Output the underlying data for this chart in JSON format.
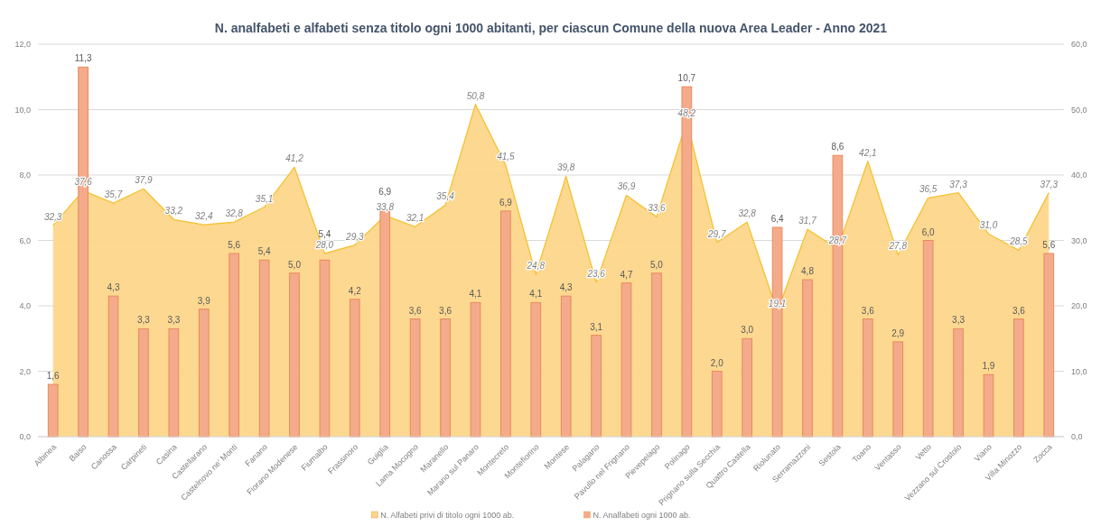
{
  "chart_data": {
    "type": "bar",
    "title": "N. analfabeti e alfabeti senza titolo ogni 1000 abitanti, per ciascun Comune della nuova Area Leader - Anno 2021",
    "categories": [
      "Albinea",
      "Baiso",
      "Canossa",
      "Carpineti",
      "Casina",
      "Castellarano",
      "Castelnovo ne' Monti",
      "Fanano",
      "Fiorano Modenese",
      "Fiumalbo",
      "Frassinoro",
      "Guiglia",
      "Lama Mocogno",
      "Maranello",
      "Marano sul Panaro",
      "Montecreto",
      "Montefiorino",
      "Montese",
      "Palagano",
      "Pavullo nel Frignano",
      "Pievepelago",
      "Polinago",
      "Prignano sulla Secchia",
      "Quattro Castella",
      "Riolunato",
      "Serramazzoni",
      "Sestola",
      "Toano",
      "Ventasso",
      "Vetto",
      "Vezzano sul Crostolo",
      "Viano",
      "Villa Minozzo",
      "Zocca"
    ],
    "series": [
      {
        "name": "N. Alfabeti privi di titolo ogni 1000 ab.",
        "type": "area",
        "axis": "y2",
        "color": "#fdd68b",
        "values": [
          32.3,
          37.6,
          35.7,
          37.9,
          33.2,
          32.4,
          32.8,
          35.1,
          41.2,
          28.0,
          29.3,
          33.8,
          32.1,
          35.4,
          50.8,
          41.5,
          24.8,
          39.8,
          23.6,
          36.9,
          33.6,
          48.2,
          29.7,
          32.8,
          19.1,
          31.7,
          28.7,
          42.1,
          27.8,
          36.5,
          37.3,
          31.0,
          28.5,
          37.3
        ],
        "value_labels": [
          "32,3",
          "37,6",
          "35,7",
          "37,9",
          "33,2",
          "32,4",
          "32,8",
          "35,1",
          "41,2",
          "28,0",
          "29,3",
          "33,8",
          "32,1",
          "35,4",
          "50,8",
          "41,5",
          "24,8",
          "39,8",
          "23,6",
          "36,9",
          "33,6",
          "48,2",
          "29,7",
          "32,8",
          "19,1",
          "31,7",
          "28,7",
          "42,1",
          "27,8",
          "36,5",
          "37,3",
          "31,0",
          "28,5",
          "37,3"
        ]
      },
      {
        "name": "N. Analfabeti ogni 1000 ab.",
        "color": "#f4ab8c",
        "values": [
          1.6,
          11.3,
          4.3,
          3.3,
          3.3,
          3.9,
          5.6,
          5.4,
          5.0,
          5.4,
          4.2,
          6.9,
          3.6,
          3.6,
          4.1,
          6.9,
          4.1,
          4.3,
          3.1,
          4.7,
          5.0,
          10.7,
          2.0,
          3.0,
          6.4,
          4.8,
          8.6,
          3.6,
          2.9,
          6.0,
          3.3,
          1.9,
          3.6,
          5.6
        ],
        "value_labels": [
          "1,6",
          "11,3",
          "4,3",
          "3,3",
          "3,3",
          "3,9",
          "5,6",
          "5,4",
          "5,0",
          "5,4",
          "4,2",
          "6,9",
          "3,6",
          "3,6",
          "4,1",
          "6,9",
          "4,1",
          "4,3",
          "3,1",
          "4,7",
          "5,0",
          "10,7",
          "2,0",
          "3,0",
          "6,4",
          "4,8",
          "8,6",
          "3,6",
          "2,9",
          "6,0",
          "3,3",
          "1,9",
          "3,6",
          "5,6"
        ]
      }
    ],
    "ylim": [
      0,
      12
    ],
    "yticks": [
      {
        "value": 0,
        "label": "0,0"
      },
      {
        "value": 2,
        "label": "2,0"
      },
      {
        "value": 4,
        "label": "4,0"
      },
      {
        "value": 6,
        "label": "6,0"
      },
      {
        "value": 8,
        "label": "8,0"
      },
      {
        "value": 10,
        "label": "10,0"
      },
      {
        "value": 12,
        "label": "12,0"
      }
    ],
    "y2lim": [
      0,
      60
    ],
    "y2ticks": [
      {
        "value": 0,
        "label": "0,0"
      },
      {
        "value": 10,
        "label": "10,0"
      },
      {
        "value": 20,
        "label": "20,0"
      },
      {
        "value": 30,
        "label": "30,0"
      },
      {
        "value": 40,
        "label": "40,0"
      },
      {
        "value": 50,
        "label": "50,0"
      },
      {
        "value": 60,
        "label": "60,0"
      }
    ],
    "grid": "y",
    "legend": "bottom"
  }
}
